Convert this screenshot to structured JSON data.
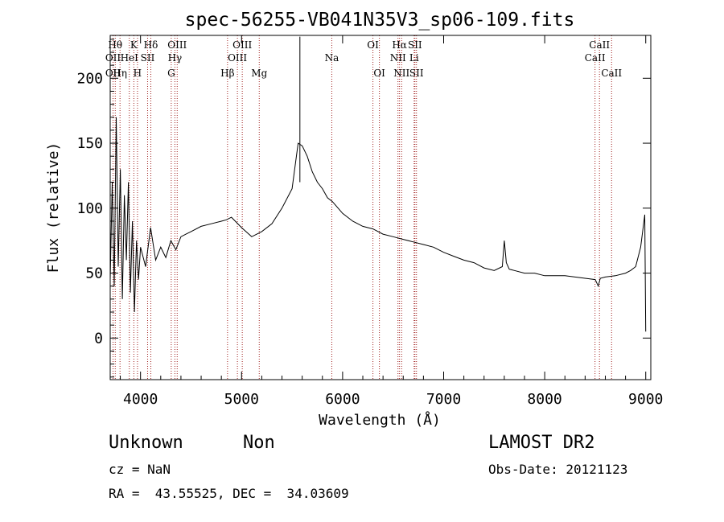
{
  "chart_data": {
    "type": "line",
    "title": "spec-56255-VB041N35V3_sp06-109.fits",
    "xlabel": "Wavelength (Å)",
    "ylabel": "Flux (relative)",
    "xlim": [
      3700,
      9050
    ],
    "ylim": [
      -32,
      233
    ],
    "x_ticks": [
      4000,
      5000,
      6000,
      7000,
      8000,
      9000
    ],
    "y_ticks": [
      0,
      50,
      100,
      150,
      200
    ],
    "grid": false,
    "line_color": "#000000",
    "marker_color": "#a0201e",
    "series": [
      {
        "x": [
          3700,
          3720,
          3740,
          3760,
          3780,
          3800,
          3820,
          3840,
          3860,
          3880,
          3900,
          3920,
          3940,
          3960,
          3980,
          4000,
          4050,
          4100,
          4150,
          4200,
          4250,
          4300,
          4350,
          4400,
          4450,
          4500,
          4600,
          4700,
          4800,
          4850,
          4900,
          5000,
          5100,
          5200,
          5300,
          5400,
          5500,
          5560,
          5600,
          5650,
          5700,
          5750,
          5800,
          5850,
          5900,
          6000,
          6100,
          6200,
          6300,
          6400,
          6500,
          6600,
          6700,
          6800,
          6900,
          7000,
          7100,
          7200,
          7300,
          7400,
          7500,
          7580,
          7600,
          7620,
          7650,
          7700,
          7800,
          7900,
          8000,
          8100,
          8200,
          8300,
          8400,
          8500,
          8530,
          8550,
          8600,
          8700,
          8800,
          8850,
          8900,
          8950,
          8990,
          9000
        ],
        "y": [
          45,
          120,
          40,
          170,
          55,
          130,
          30,
          110,
          60,
          120,
          35,
          90,
          20,
          75,
          45,
          70,
          55,
          85,
          60,
          70,
          62,
          75,
          68,
          78,
          80,
          82,
          86,
          88,
          90,
          91,
          93,
          85,
          78,
          82,
          88,
          100,
          115,
          150,
          148,
          140,
          128,
          120,
          115,
          108,
          105,
          96,
          90,
          86,
          84,
          80,
          78,
          76,
          74,
          72,
          70,
          66,
          63,
          60,
          58,
          54,
          52,
          55,
          75,
          58,
          53,
          52,
          50,
          50,
          48,
          48,
          48,
          47,
          46,
          45,
          40,
          46,
          47,
          48,
          50,
          52,
          55,
          70,
          95,
          5
        ]
      }
    ],
    "spikes": [
      {
        "x": 5577,
        "y": 232
      }
    ],
    "lines": [
      {
        "x": 3750,
        "row": 0,
        "label": "Hθ"
      },
      {
        "x": 3728,
        "row": 1,
        "label": "OII"
      },
      {
        "x": 3728,
        "row": 2,
        "label": "OII"
      },
      {
        "x": 3797,
        "row": 2,
        "label": "Hη"
      },
      {
        "x": 3889,
        "row": 1,
        "label": "HeI"
      },
      {
        "x": 3934,
        "row": 0,
        "label": "K"
      },
      {
        "x": 3970,
        "row": 2,
        "label": "H"
      },
      {
        "x": 4070,
        "row": 1,
        "label": "SII"
      },
      {
        "x": 4102,
        "row": 0,
        "label": "Hδ"
      },
      {
        "x": 4304,
        "row": 2,
        "label": "G"
      },
      {
        "x": 4340,
        "row": 1,
        "label": "Hγ"
      },
      {
        "x": 4363,
        "row": 0,
        "label": "OIII"
      },
      {
        "x": 4861,
        "row": 2,
        "label": "Hβ"
      },
      {
        "x": 4959,
        "row": 1,
        "label": "OIII"
      },
      {
        "x": 5007,
        "row": 0,
        "label": "OIII"
      },
      {
        "x": 5175,
        "row": 2,
        "label": "Mg"
      },
      {
        "x": 5893,
        "row": 1,
        "label": "Na"
      },
      {
        "x": 6300,
        "row": 0,
        "label": "OI"
      },
      {
        "x": 6364,
        "row": 2,
        "label": "OI"
      },
      {
        "x": 6548,
        "row": 1,
        "label": "NII"
      },
      {
        "x": 6563,
        "row": 0,
        "label": "Hα"
      },
      {
        "x": 6584,
        "row": 2,
        "label": "NII"
      },
      {
        "x": 6708,
        "row": 1,
        "label": "Li"
      },
      {
        "x": 6716,
        "row": 0,
        "label": "SII"
      },
      {
        "x": 6731,
        "row": 2,
        "label": "SII"
      },
      {
        "x": 8498,
        "row": 1,
        "label": "CaII"
      },
      {
        "x": 8542,
        "row": 0,
        "label": "CaII"
      },
      {
        "x": 8662,
        "row": 2,
        "label": "CaII"
      }
    ]
  },
  "info": {
    "class": "Unknown",
    "subclass": "Non",
    "survey": "LAMOST DR2",
    "cz": "cz = NaN",
    "obs_date": "Obs-Date: 20121123",
    "coords": "RA =  43.55525, DEC =  34.03609"
  }
}
